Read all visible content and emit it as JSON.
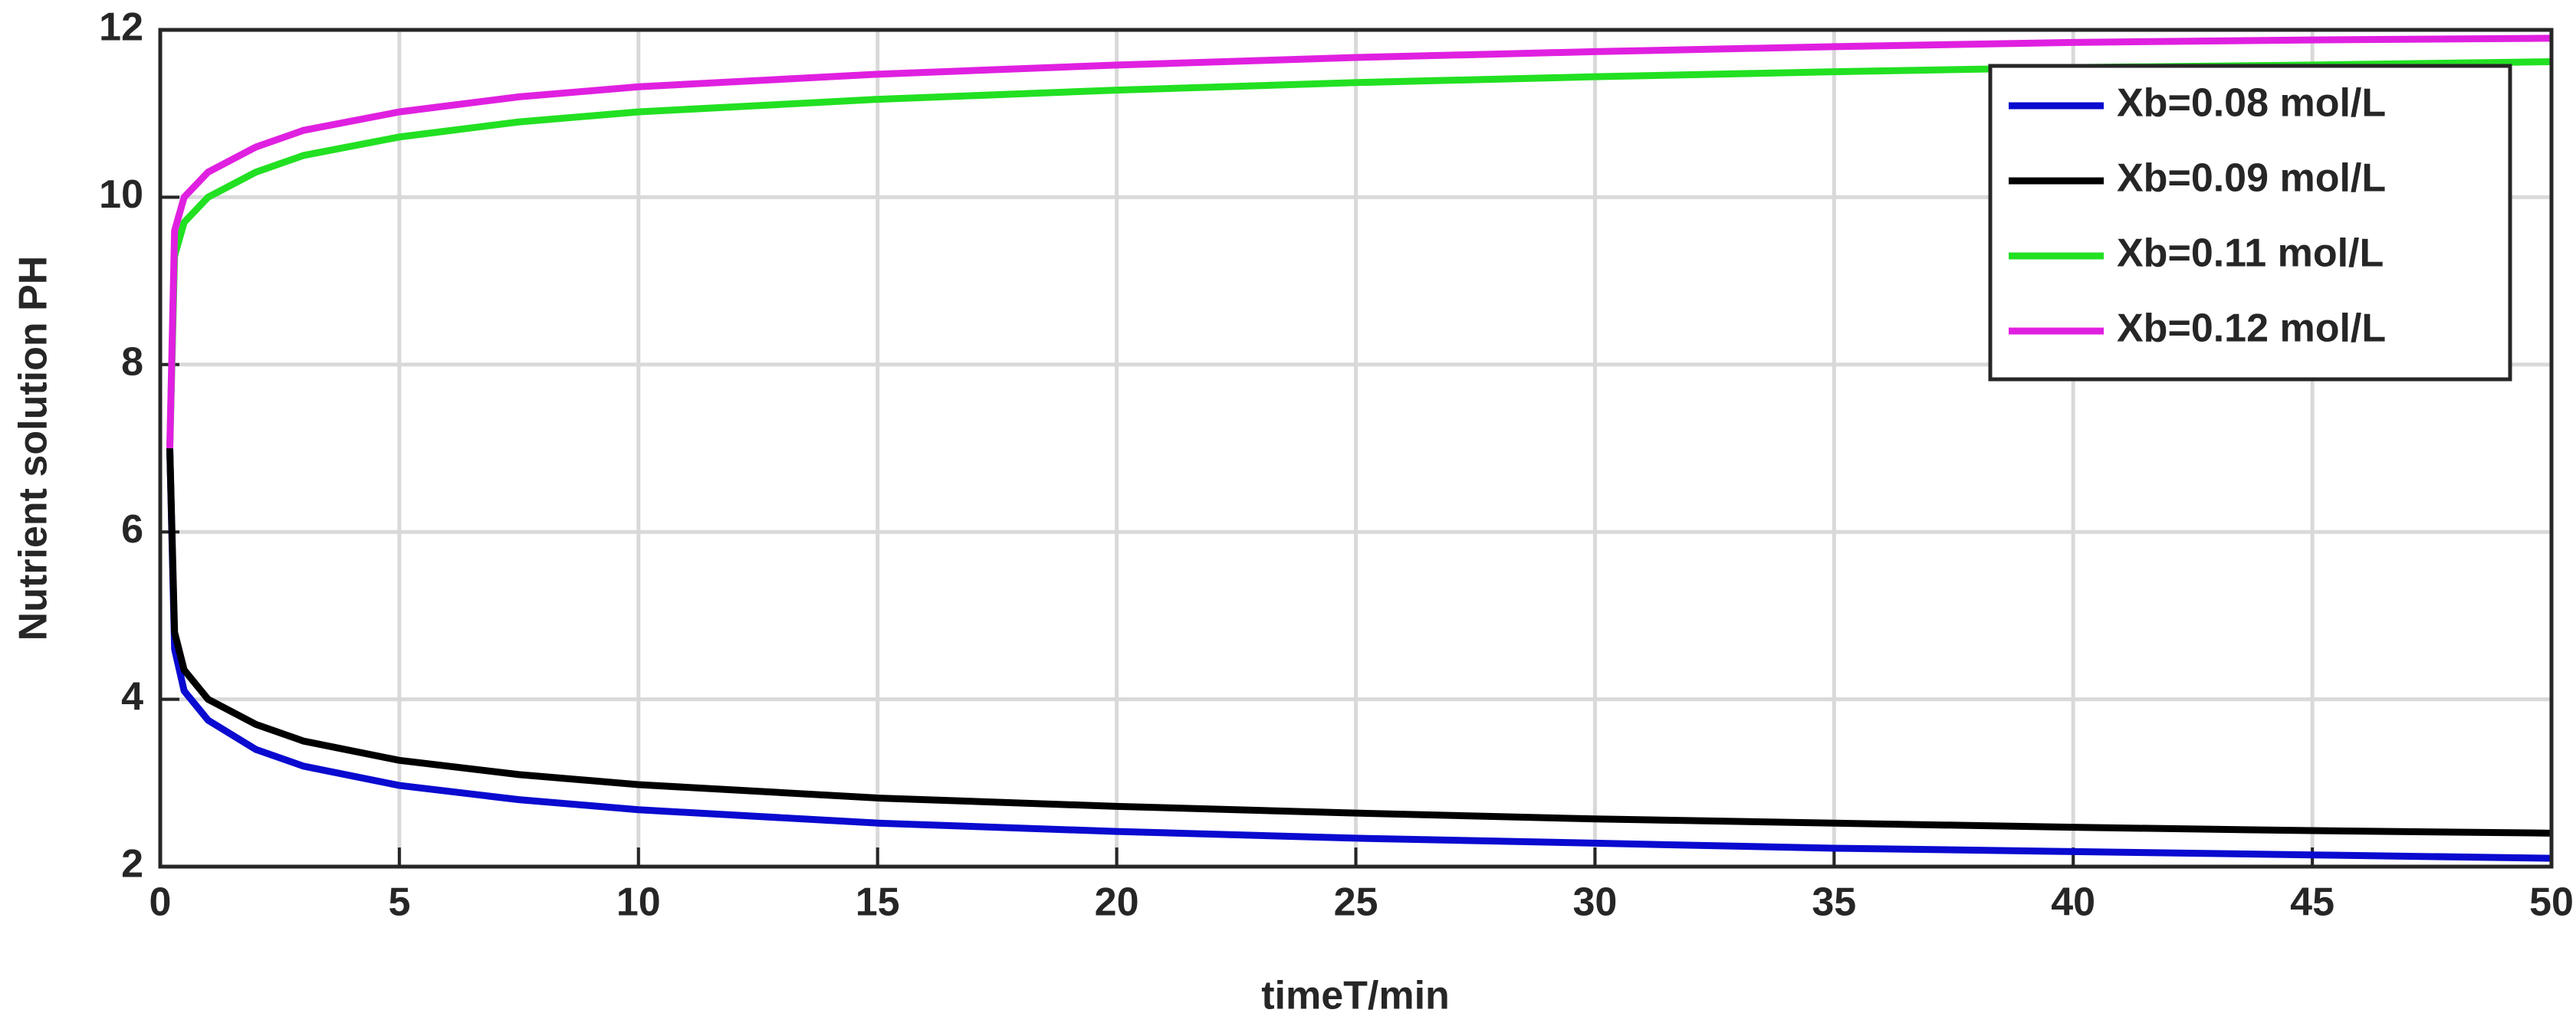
{
  "chart_data": {
    "type": "line",
    "xlabel": "timeT/min",
    "ylabel": "Nutrient solution PH",
    "x": [
      0.2,
      0.3,
      0.5,
      1,
      2,
      3,
      5,
      7.5,
      10,
      15,
      20,
      25,
      30,
      35,
      40,
      45,
      50
    ],
    "series": [
      {
        "name": "Xb=0.08 mol/L",
        "color": "#0a0ad0",
        "values": [
          7,
          4.6,
          4.1,
          3.75,
          3.4,
          3.2,
          2.97,
          2.8,
          2.68,
          2.52,
          2.42,
          2.34,
          2.28,
          2.22,
          2.18,
          2.14,
          2.1
        ]
      },
      {
        "name": "Xb=0.09 mol/L",
        "color": "#000000",
        "values": [
          7,
          4.8,
          4.35,
          4.0,
          3.7,
          3.5,
          3.27,
          3.1,
          2.98,
          2.82,
          2.72,
          2.64,
          2.57,
          2.52,
          2.47,
          2.43,
          2.4
        ]
      },
      {
        "name": "Xb=0.11 mol/L",
        "color": "#22e022",
        "values": [
          7,
          9.3,
          9.7,
          10.0,
          10.3,
          10.5,
          10.72,
          10.9,
          11.02,
          11.17,
          11.28,
          11.37,
          11.44,
          11.5,
          11.55,
          11.58,
          11.62
        ]
      },
      {
        "name": "Xb=0.12 mol/L",
        "color": "#e020e0",
        "values": [
          7,
          9.6,
          10.0,
          10.3,
          10.6,
          10.8,
          11.02,
          11.2,
          11.32,
          11.47,
          11.58,
          11.67,
          11.74,
          11.8,
          11.85,
          11.88,
          11.9
        ]
      }
    ],
    "xlim": [
      0,
      50
    ],
    "xticks": [
      0,
      5,
      10,
      15,
      20,
      25,
      30,
      35,
      40,
      45,
      50
    ],
    "ylim": [
      2,
      12
    ],
    "yticks": [
      2,
      4,
      6,
      8,
      10,
      12
    ],
    "grid": true,
    "legend": "upper right"
  }
}
